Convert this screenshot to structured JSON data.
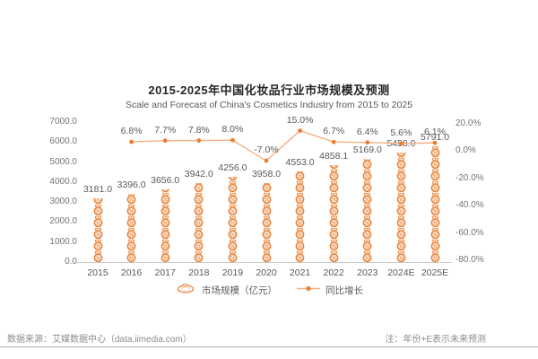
{
  "chart": {
    "title": "2015-2025年中国化妆品行业市场规模及预测",
    "subtitle": "Scale and Forecast of China's Cosmetics Industry from 2015 to 2025"
  },
  "legend": {
    "market_size": "市场规模（亿元）",
    "yoy_growth": "同比增长",
    "market_size_icon": "cosmetics-badge-icon",
    "yoy_growth_icon": "line-marker-icon"
  },
  "footer": {
    "source": "数据来源：艾媒数据中心（data.iimedia.com）",
    "note": "注：年份+E表示未来预测"
  },
  "colors": {
    "accent_orange": "#ED7D31",
    "line_orange": "#F4B183",
    "icon_orange": "#E8833B",
    "icon_light_orange": "#F5C39B",
    "label_gray": "#595959",
    "axis_gray": "#737373",
    "footer_gray": "#8C8C8C"
  },
  "chart_data": {
    "type": "bar",
    "subtype": "pictogram-bar-with-line",
    "title": "2015-2025年中国化妆品行业市场规模及预测",
    "subtitle": "Scale and Forecast of China's Cosmetics Industry from 2015 to 2025",
    "categories": [
      "2015",
      "2016",
      "2017",
      "2018",
      "2019",
      "2020",
      "2021",
      "2022",
      "2023",
      "2024E",
      "2025E"
    ],
    "series": [
      {
        "name": "市场规模（亿元）",
        "type": "pictogram-bar",
        "axis": "left",
        "values": [
          3181.0,
          3396.0,
          3656.0,
          3942.0,
          4256.0,
          3958.0,
          4553.0,
          4858.1,
          5169.0,
          5458.0,
          5791.0
        ],
        "labels": [
          "3181.0",
          "3396.0",
          "3656.0",
          "3942.0",
          "4256.0",
          "3958.0",
          "4553.0",
          "4858.1",
          "5169.0",
          "5458.0",
          "5791.0"
        ]
      },
      {
        "name": "同比增长",
        "type": "line",
        "axis": "right",
        "values": [
          null,
          6.8,
          7.7,
          7.8,
          8.0,
          -7.0,
          15.0,
          6.7,
          6.4,
          5.6,
          6.1
        ],
        "labels": [
          null,
          "6.8%",
          "7.7%",
          "7.8%",
          "8.0%",
          "-7.0%",
          "15.0%",
          "6.7%",
          "6.4%",
          "5.6%",
          "6.1%"
        ]
      }
    ],
    "left_axis": {
      "ticks": [
        "7000.0",
        "6000.0",
        "5000.0",
        "4000.0",
        "3000.0",
        "2000.0",
        "1000.0",
        "0.0"
      ],
      "min": 0,
      "max": 7000
    },
    "right_axis": {
      "ticks": [
        "20.0%",
        "0.0%",
        "-20.0%",
        "-40.0%",
        "-60.0%",
        "-80.0%"
      ],
      "min": -80,
      "max": 20
    },
    "grid": false,
    "legend_position": "bottom"
  }
}
